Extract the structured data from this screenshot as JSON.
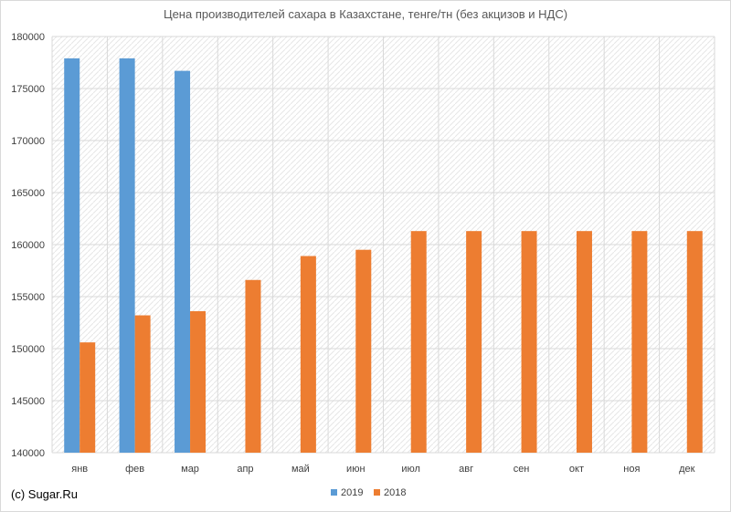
{
  "credit": "(c) Sugar.Ru",
  "colors": {
    "s2019": "#5B9BD5",
    "s2018": "#ED7D31",
    "grid": "#d9d9d9"
  },
  "chart_data": {
    "type": "bar",
    "title": "Цена производителей сахара в Казахстане, тенге/тн (без акцизов и НДС)",
    "xlabel": "",
    "ylabel": "",
    "categories": [
      "янв",
      "фев",
      "мар",
      "апр",
      "май",
      "июн",
      "июл",
      "авг",
      "сен",
      "окт",
      "ноя",
      "дек"
    ],
    "ylim": [
      140000,
      180000
    ],
    "yticks": [
      140000,
      145000,
      150000,
      155000,
      160000,
      165000,
      170000,
      175000,
      180000
    ],
    "grid": "vertical and horizontal, pattern",
    "legend": "bottom-center",
    "series": [
      {
        "name": "2019",
        "color": "#5B9BD5",
        "values": [
          177900,
          177900,
          176700,
          null,
          null,
          null,
          null,
          null,
          null,
          null,
          null,
          null
        ]
      },
      {
        "name": "2018",
        "color": "#ED7D31",
        "values": [
          150600,
          153200,
          153600,
          156600,
          158900,
          159500,
          161300,
          161300,
          161300,
          161300,
          161300,
          161300
        ]
      }
    ]
  }
}
